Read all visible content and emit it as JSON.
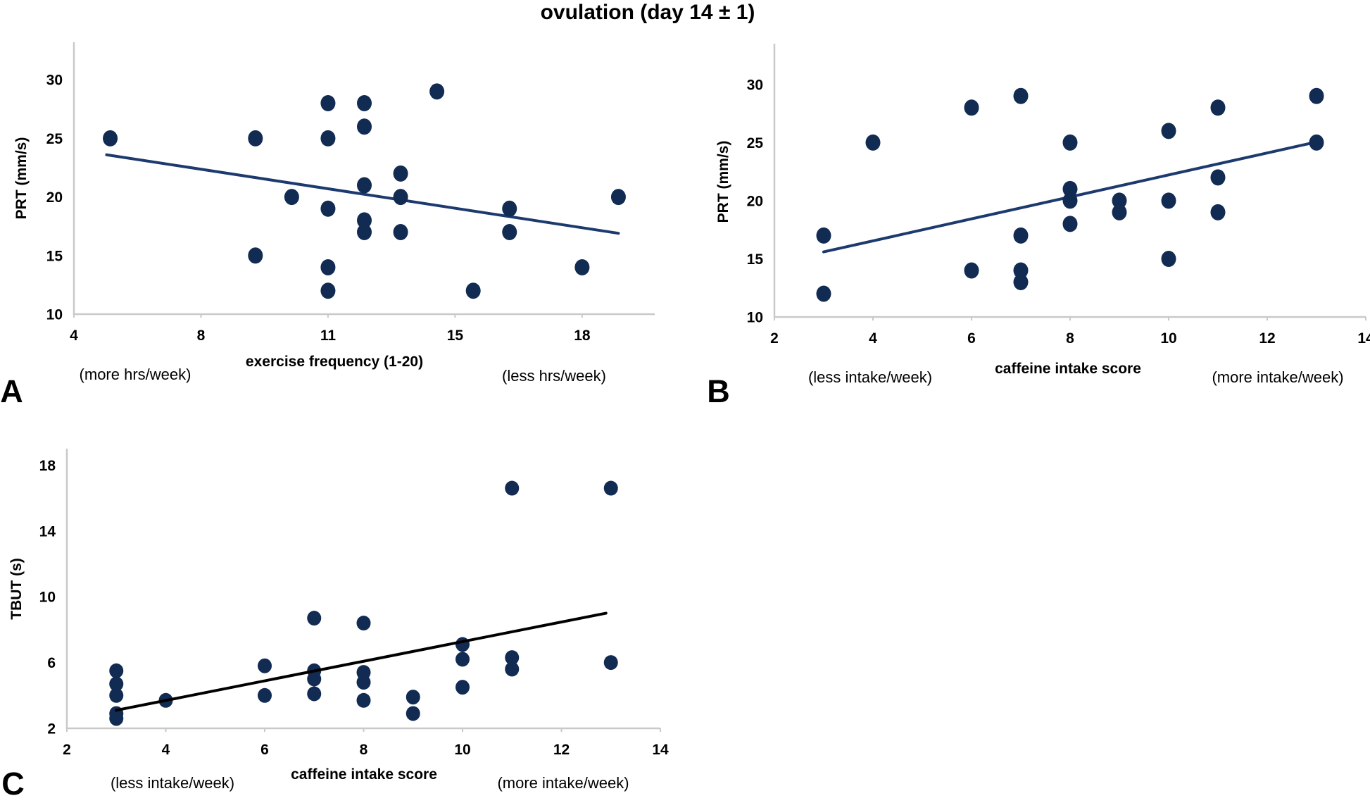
{
  "title": "ovulation (day 14 ± 1)",
  "colors": {
    "dot": "#122b52",
    "trend_navy": "#1c3a6e",
    "trend_black": "#000000",
    "axis_line": "#c9c9c9"
  },
  "chart_data": [
    {
      "panel": "A",
      "type": "scatter",
      "xlabel": "exercise frequency (1-20)",
      "ylabel": "PRT (mm/s)",
      "annotation_left": "(more hrs/week)",
      "annotation_right": "(less hrs/week)",
      "xlim": [
        4,
        20
      ],
      "ylim": [
        10,
        33.2
      ],
      "xticks": [
        {
          "v": 4,
          "label": "4"
        },
        {
          "v": 7.5,
          "label": "8"
        },
        {
          "v": 11,
          "label": "11"
        },
        {
          "v": 14.5,
          "label": "15"
        },
        {
          "v": 18,
          "label": "18"
        }
      ],
      "yticks": [
        {
          "v": 10,
          "label": "10"
        },
        {
          "v": 15,
          "label": "15"
        },
        {
          "v": 20,
          "label": "20"
        },
        {
          "v": 25,
          "label": "25"
        },
        {
          "v": 30,
          "label": "30"
        }
      ],
      "points": [
        [
          5,
          25
        ],
        [
          9,
          25
        ],
        [
          9,
          15
        ],
        [
          10,
          20
        ],
        [
          11,
          28
        ],
        [
          11,
          25
        ],
        [
          11,
          19
        ],
        [
          11,
          14
        ],
        [
          11,
          12
        ],
        [
          12,
          28
        ],
        [
          12,
          26
        ],
        [
          12,
          21
        ],
        [
          12,
          18
        ],
        [
          12,
          17
        ],
        [
          13,
          22
        ],
        [
          13,
          20
        ],
        [
          13,
          17
        ],
        [
          14,
          29
        ],
        [
          15,
          12
        ],
        [
          16,
          19
        ],
        [
          16,
          17
        ],
        [
          18,
          14
        ],
        [
          19,
          20
        ]
      ],
      "trendline": {
        "x1": 4.9,
        "y1": 23.6,
        "x2": 19.0,
        "y2": 16.9,
        "color_key": "trend_navy"
      }
    },
    {
      "panel": "B",
      "type": "scatter",
      "xlabel": "caffeine intake score",
      "ylabel": "PRT (mm/s)",
      "annotation_left": "(less intake/week)",
      "annotation_right": "(more intake/week)",
      "xlim": [
        2,
        14
      ],
      "ylim": [
        10,
        33.5
      ],
      "xticks": [
        {
          "v": 2,
          "label": "2"
        },
        {
          "v": 4,
          "label": "4"
        },
        {
          "v": 6,
          "label": "6"
        },
        {
          "v": 8,
          "label": "8"
        },
        {
          "v": 10,
          "label": "10"
        },
        {
          "v": 12,
          "label": "12"
        },
        {
          "v": 14,
          "label": "14"
        }
      ],
      "yticks": [
        {
          "v": 10,
          "label": "10"
        },
        {
          "v": 15,
          "label": "15"
        },
        {
          "v": 20,
          "label": "20"
        },
        {
          "v": 25,
          "label": "25"
        },
        {
          "v": 30,
          "label": "30"
        }
      ],
      "points": [
        [
          3,
          17
        ],
        [
          3,
          12
        ],
        [
          4,
          25
        ],
        [
          6,
          28
        ],
        [
          6,
          14
        ],
        [
          7,
          29
        ],
        [
          7,
          17
        ],
        [
          7,
          14
        ],
        [
          7,
          13
        ],
        [
          8,
          25
        ],
        [
          8,
          21
        ],
        [
          8,
          20
        ],
        [
          8,
          18
        ],
        [
          9,
          20
        ],
        [
          9,
          19
        ],
        [
          10,
          26
        ],
        [
          10,
          20
        ],
        [
          10,
          15
        ],
        [
          11,
          28
        ],
        [
          11,
          22
        ],
        [
          11,
          19
        ],
        [
          13,
          29
        ],
        [
          13,
          25
        ]
      ],
      "trendline": {
        "x1": 3.0,
        "y1": 15.6,
        "x2": 12.95,
        "y2": 25.0,
        "color_key": "trend_navy"
      }
    },
    {
      "panel": "C",
      "type": "scatter",
      "xlabel": "caffeine intake score",
      "ylabel": "TBUT (s)",
      "annotation_left": "(less intake/week)",
      "annotation_right": "(more intake/week)",
      "xlim": [
        2,
        14
      ],
      "ylim": [
        2,
        19
      ],
      "xticks": [
        {
          "v": 2,
          "label": "2"
        },
        {
          "v": 4,
          "label": "4"
        },
        {
          "v": 6,
          "label": "6"
        },
        {
          "v": 8,
          "label": "8"
        },
        {
          "v": 10,
          "label": "10"
        },
        {
          "v": 12,
          "label": "12"
        },
        {
          "v": 14,
          "label": "14"
        }
      ],
      "yticks": [
        {
          "v": 2,
          "label": "2"
        },
        {
          "v": 6,
          "label": "6"
        },
        {
          "v": 10,
          "label": "10"
        },
        {
          "v": 14,
          "label": "14"
        },
        {
          "v": 18,
          "label": "18"
        }
      ],
      "points": [
        [
          3,
          5.5
        ],
        [
          3,
          4.7
        ],
        [
          3,
          4.0
        ],
        [
          3,
          2.9
        ],
        [
          3,
          2.6
        ],
        [
          4,
          3.7
        ],
        [
          6,
          5.8
        ],
        [
          6,
          4.0
        ],
        [
          7,
          8.7
        ],
        [
          7,
          5.5
        ],
        [
          7,
          5.0
        ],
        [
          7,
          4.1
        ],
        [
          8,
          8.4
        ],
        [
          8,
          5.4
        ],
        [
          8,
          4.8
        ],
        [
          8,
          3.7
        ],
        [
          9,
          3.9
        ],
        [
          9,
          2.9
        ],
        [
          10,
          7.1
        ],
        [
          10,
          6.2
        ],
        [
          10,
          4.5
        ],
        [
          11,
          16.6
        ],
        [
          11,
          6.3
        ],
        [
          11,
          5.6
        ],
        [
          13,
          16.6
        ],
        [
          13,
          6.0
        ]
      ],
      "trendline": {
        "x1": 3.0,
        "y1": 3.1,
        "x2": 12.9,
        "y2": 9.0,
        "color_key": "trend_black"
      }
    }
  ]
}
